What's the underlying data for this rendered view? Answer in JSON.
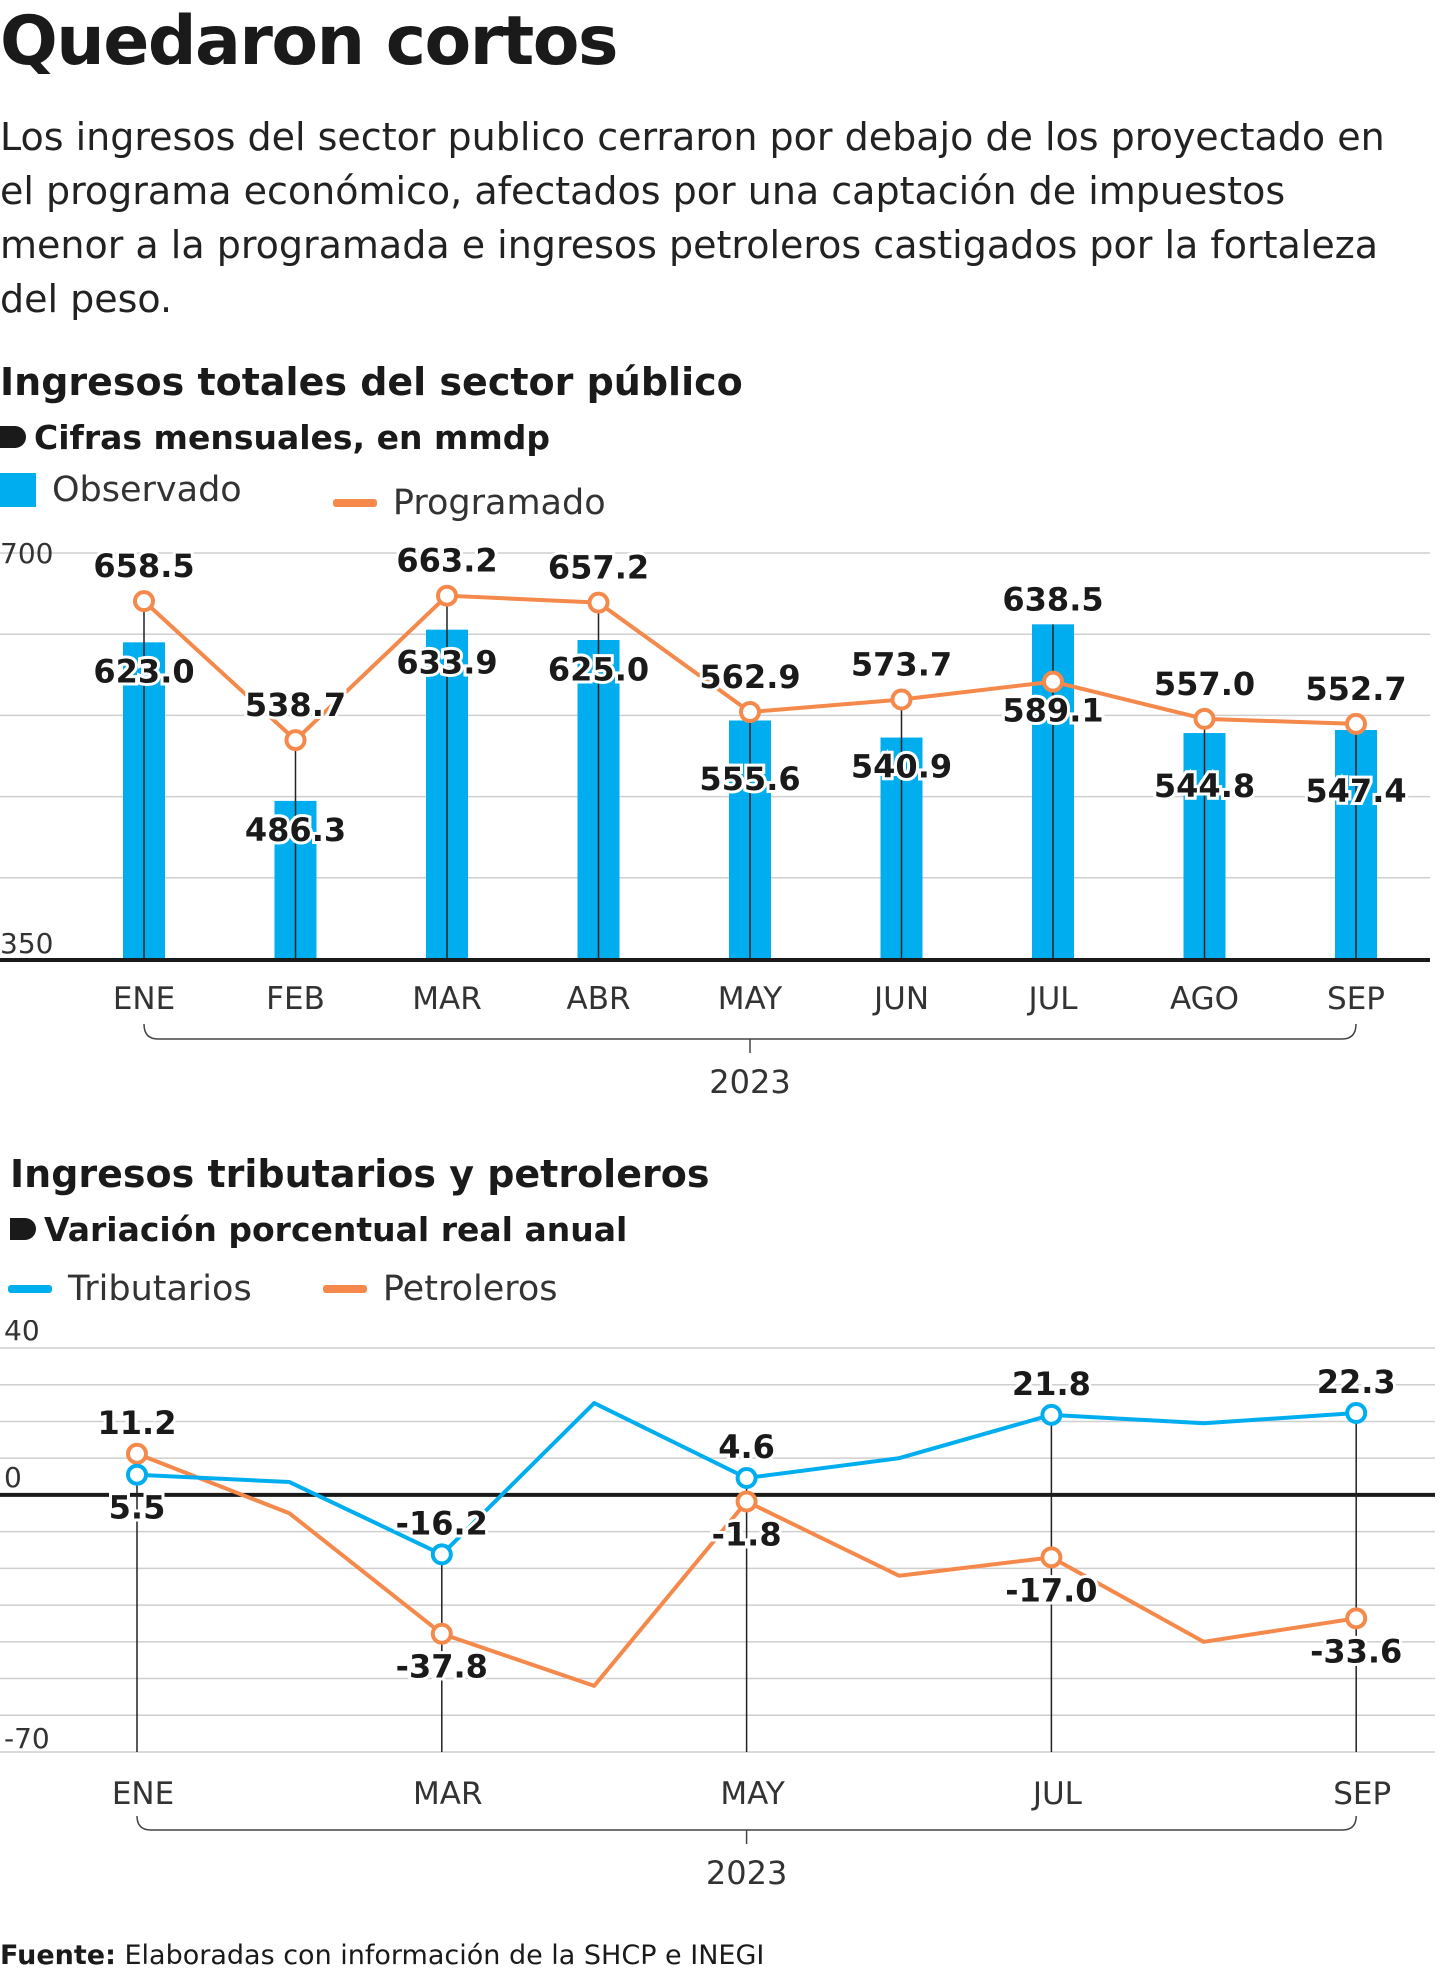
{
  "title": "Quedaron cortos",
  "subtitle": "Los ingresos del sector publico cerraron por debajo de los proyectado en el programa económico, afectados por una captación de impuestos menor a la programada e ingresos petroleros castigados por la fortaleza del peso.",
  "source_label": "Fuente:",
  "source_text": "Elaboradas con información de la SHCP e INEGI",
  "colors": {
    "blue": "#00AEEF",
    "orange": "#F4894B",
    "text": "#1a1a1a",
    "grid": "#cfcfcf"
  },
  "chart1": {
    "title": "Ingresos totales del sector público",
    "subtitle": "Cifras mensuales, en mmdp",
    "legend": [
      "Observado",
      "Programado"
    ]
  },
  "chart2": {
    "title": "Ingresos tributarios y petroleros",
    "subtitle": "Variación porcentual real anual",
    "legend": [
      "Tributarios",
      "Petroleros"
    ]
  },
  "chart_data": [
    {
      "type": "bar",
      "title": "Ingresos totales del sector público",
      "subtitle": "Cifras mensuales, en mmdp",
      "categories": [
        "ENE",
        "FEB",
        "MAR",
        "ABR",
        "MAY",
        "JUN",
        "JUL",
        "AGO",
        "SEP"
      ],
      "year_label": "2023",
      "ylim": [
        350,
        700
      ],
      "yticks": [
        350,
        700
      ],
      "series": [
        {
          "name": "Observado",
          "kind": "bar",
          "color": "#00AEEF",
          "values": [
            623.0,
            486.3,
            633.9,
            625.0,
            555.6,
            540.9,
            638.5,
            544.8,
            547.4
          ]
        },
        {
          "name": "Programado",
          "kind": "line",
          "color": "#F4894B",
          "values": [
            658.5,
            538.7,
            663.2,
            657.2,
            562.9,
            573.7,
            589.1,
            557.0,
            552.7
          ]
        }
      ],
      "legend_position": "top-left",
      "grid": true
    },
    {
      "type": "line",
      "title": "Ingresos tributarios y petroleros",
      "subtitle": "Variación porcentual real anual",
      "categories": [
        "ENE",
        "FEB",
        "MAR",
        "ABR",
        "MAY",
        "JUN",
        "JUL",
        "AGO",
        "SEP"
      ],
      "tick_labels": [
        "ENE",
        "MAR",
        "MAY",
        "JUL",
        "SEP"
      ],
      "year_label": "2023",
      "ylim": [
        -70,
        40
      ],
      "yticks": [
        40,
        0,
        -70
      ],
      "series": [
        {
          "name": "Tributarios",
          "color": "#00AEEF",
          "values": [
            5.5,
            3.5,
            -16.2,
            25.0,
            4.6,
            10.0,
            21.8,
            19.5,
            22.3
          ],
          "labeled_indices": [
            0,
            2,
            4,
            6,
            8
          ]
        },
        {
          "name": "Petroleros",
          "color": "#F4894B",
          "values": [
            11.2,
            -5.0,
            -37.8,
            -52.0,
            -1.8,
            -22.0,
            -17.0,
            -40.0,
            -33.6
          ],
          "labeled_indices": [
            0,
            2,
            4,
            6,
            8
          ]
        }
      ],
      "legend_position": "top-left",
      "grid": true
    }
  ]
}
